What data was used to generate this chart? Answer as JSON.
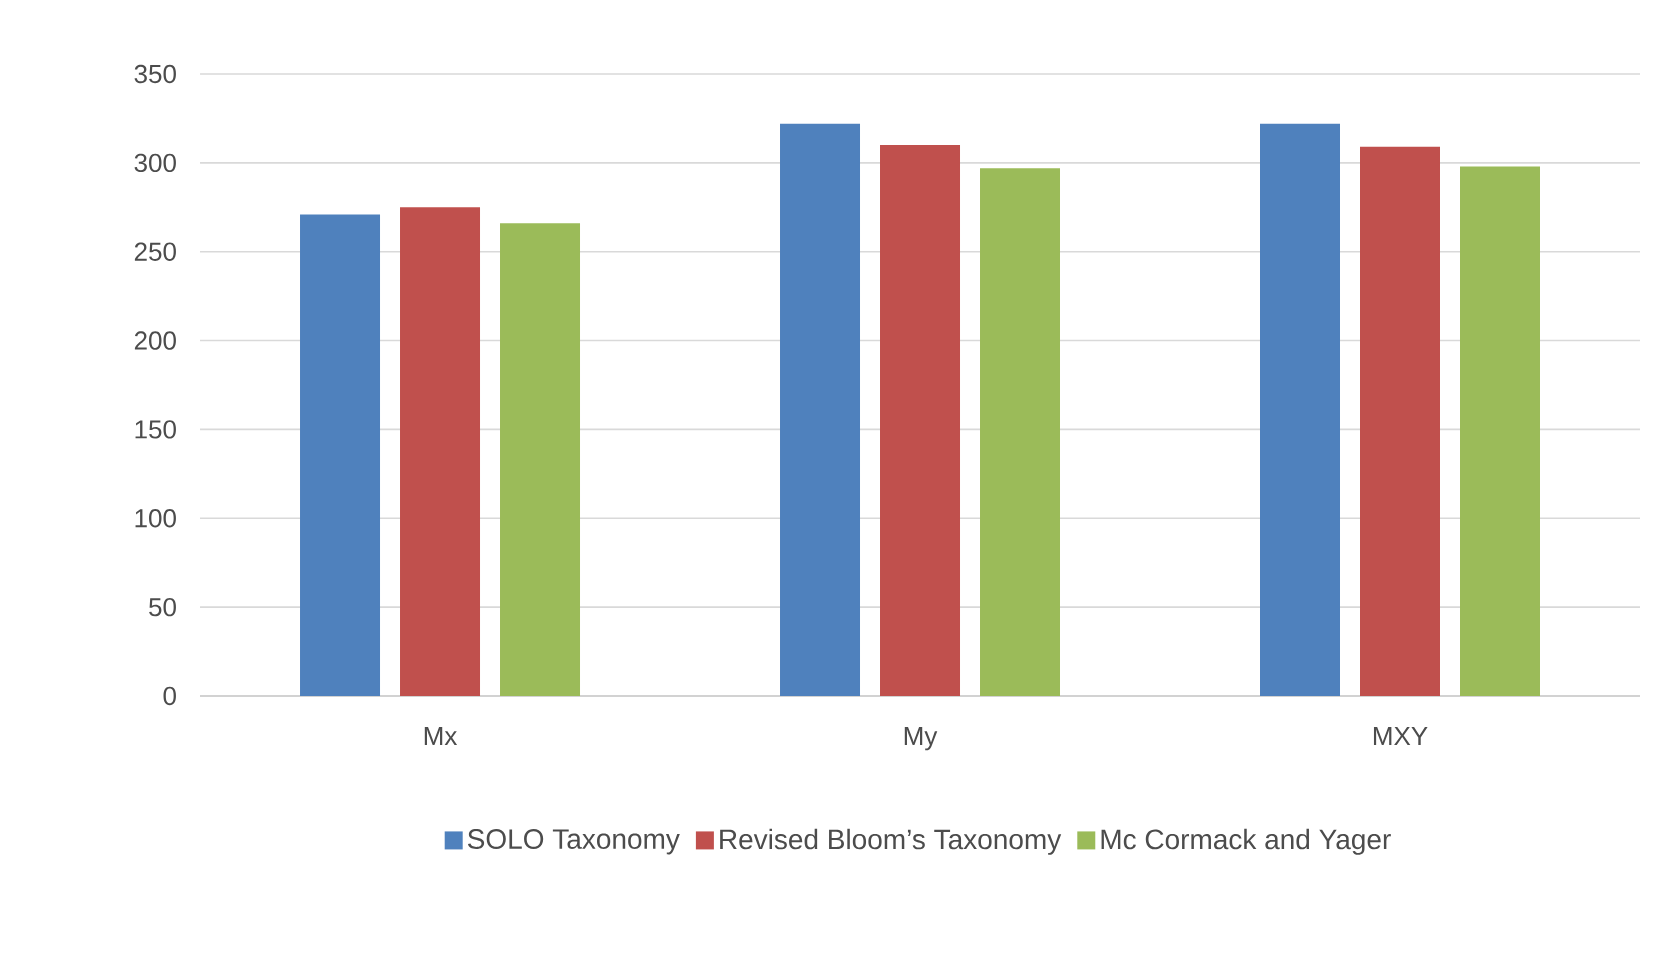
{
  "chart_data": {
    "type": "bar",
    "categories": [
      "Mx",
      "My",
      "MXY"
    ],
    "series": [
      {
        "name": "SOLO Taxonomy",
        "color": "#4f81bd",
        "values": [
          271,
          322,
          322
        ]
      },
      {
        "name": "Revised Bloom’s Taxonomy",
        "color": "#c0504d",
        "values": [
          275,
          310,
          309
        ]
      },
      {
        "name": "Mc Cormack and Yager",
        "color": "#9bbb59",
        "values": [
          266,
          297,
          298
        ]
      }
    ],
    "ylim": [
      0,
      350
    ],
    "yticks": [
      0,
      50,
      100,
      150,
      200,
      250,
      300,
      350
    ],
    "grid": "y",
    "legend": "bottom"
  }
}
